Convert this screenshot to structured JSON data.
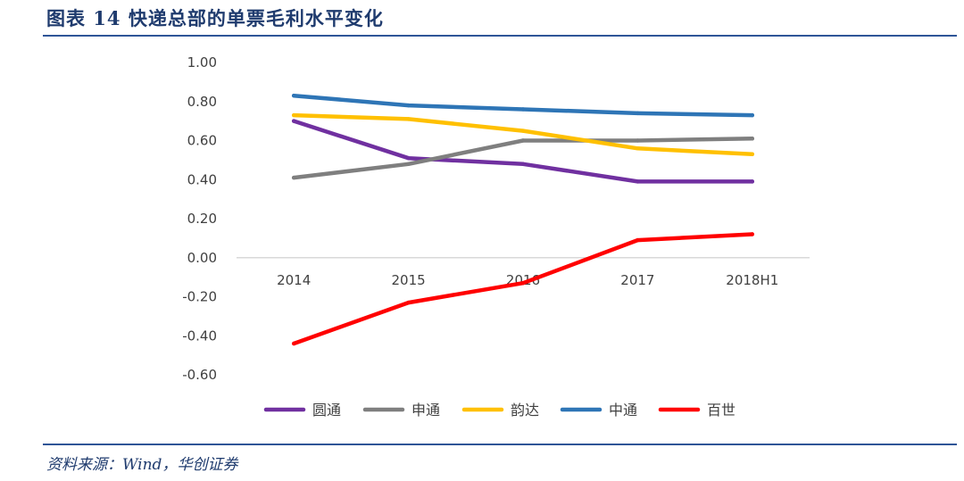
{
  "header": {
    "title": "图表 14    快递总部的单票毛利水平变化"
  },
  "footer": {
    "source": "资料来源：Wind，华创证券"
  },
  "colors": {
    "rule": "#2f5597",
    "title": "#1f3b6e",
    "axis": "#d9d9d9"
  },
  "chart_data": {
    "type": "line",
    "title": "",
    "xlabel": "",
    "ylabel": "",
    "categories": [
      "2014",
      "2015",
      "2016",
      "2017",
      "2018H1"
    ],
    "ylim": [
      -0.6,
      1.0
    ],
    "yticks": [
      "1.00",
      "0.80",
      "0.60",
      "0.40",
      "0.20",
      "0.00",
      "-0.20",
      "-0.40",
      "-0.60"
    ],
    "grid": false,
    "legend_position": "bottom",
    "series": [
      {
        "name": "圆通",
        "color": "#7030a0",
        "values": [
          0.7,
          0.51,
          0.48,
          0.39,
          0.39
        ]
      },
      {
        "name": "申通",
        "color": "#7f7f7f",
        "values": [
          0.41,
          0.48,
          0.6,
          0.6,
          0.61
        ]
      },
      {
        "name": "韵达",
        "color": "#ffc000",
        "values": [
          0.73,
          0.71,
          0.65,
          0.56,
          0.53
        ]
      },
      {
        "name": "中通",
        "color": "#2e75b6",
        "values": [
          0.83,
          0.78,
          0.76,
          0.74,
          0.73
        ]
      },
      {
        "name": "百世",
        "color": "#ff0000",
        "values": [
          -0.44,
          -0.23,
          -0.13,
          0.09,
          0.12
        ]
      }
    ]
  }
}
